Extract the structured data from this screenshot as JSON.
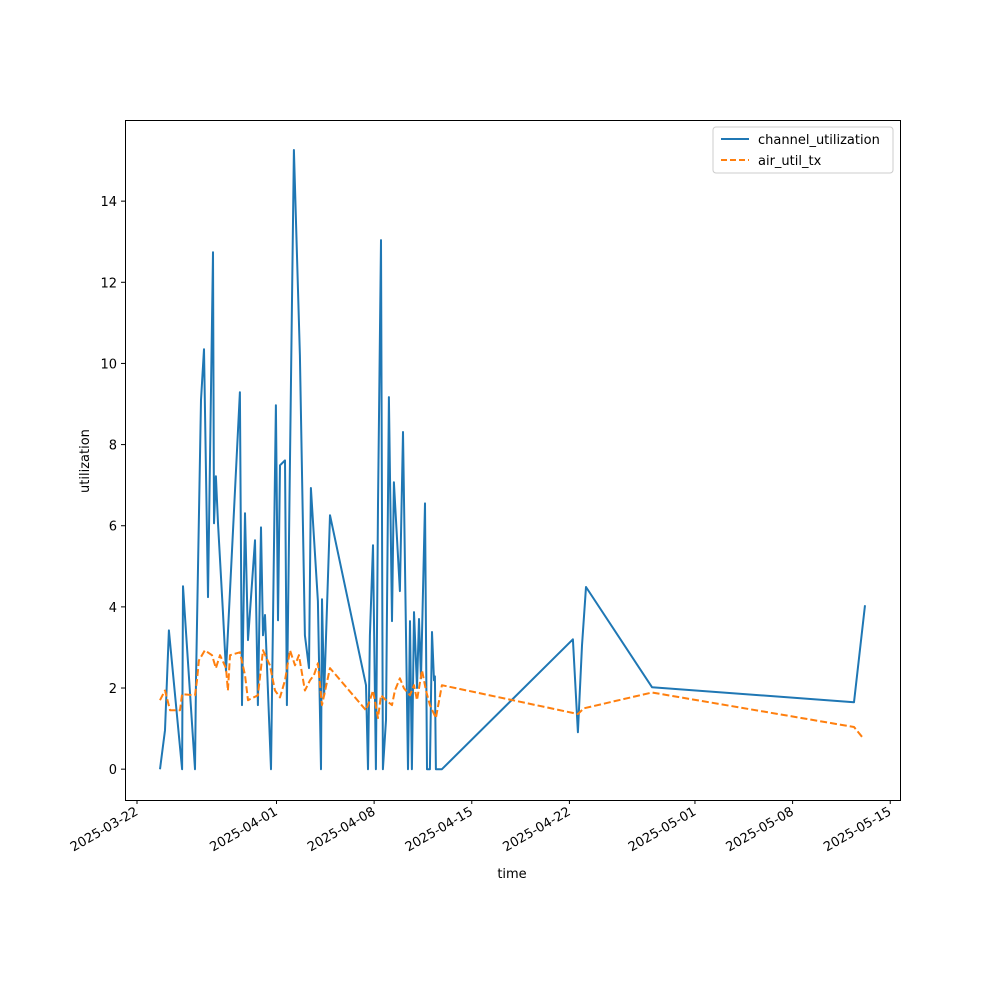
{
  "chart_data": {
    "type": "line",
    "title": "",
    "xlabel": "time",
    "ylabel": "utilization",
    "x_origin_date": "2025-03-22",
    "x_unit": "days since 2025-03-22",
    "xlim": [
      -0.86,
      54.7
    ],
    "ylim": [
      -0.76,
      16.0
    ],
    "xticks": [
      {
        "label": "2025-03-22",
        "day": 0
      },
      {
        "label": "2025-04-01",
        "day": 10
      },
      {
        "label": "2025-04-08",
        "day": 17
      },
      {
        "label": "2025-04-15",
        "day": 24
      },
      {
        "label": "2025-04-22",
        "day": 31
      },
      {
        "label": "2025-05-01",
        "day": 40
      },
      {
        "label": "2025-05-08",
        "day": 47
      },
      {
        "label": "2025-05-15",
        "day": 54
      }
    ],
    "yticks": [
      0,
      2,
      4,
      6,
      8,
      10,
      12,
      14
    ],
    "grid": false,
    "legend": "top-right",
    "series": [
      {
        "name": "channel_utilization",
        "color": "#1f77b4",
        "style": "solid",
        "points": [
          [
            1.65,
            0
          ],
          [
            2.01,
            0.96
          ],
          [
            2.29,
            3.42
          ],
          [
            3.23,
            0
          ],
          [
            3.3,
            4.51
          ],
          [
            4.16,
            0
          ],
          [
            4.23,
            2.19
          ],
          [
            4.59,
            9.1
          ],
          [
            4.8,
            10.35
          ],
          [
            5.09,
            4.24
          ],
          [
            5.45,
            12.74
          ],
          [
            5.52,
            6.06
          ],
          [
            5.66,
            7.22
          ],
          [
            5.81,
            6.06
          ],
          [
            6.16,
            3.89
          ],
          [
            6.38,
            2.42
          ],
          [
            7.38,
            9.29
          ],
          [
            7.53,
            1.58
          ],
          [
            7.74,
            6.31
          ],
          [
            7.96,
            3.18
          ],
          [
            8.46,
            5.64
          ],
          [
            8.67,
            1.58
          ],
          [
            8.89,
            5.96
          ],
          [
            9.03,
            3.3
          ],
          [
            9.18,
            3.8
          ],
          [
            9.61,
            0
          ],
          [
            9.82,
            5.52
          ],
          [
            9.96,
            8.97
          ],
          [
            10.11,
            3.67
          ],
          [
            10.25,
            7.49
          ],
          [
            10.61,
            7.61
          ],
          [
            10.75,
            1.58
          ],
          [
            11.25,
            15.26
          ],
          [
            11.68,
            10.2
          ],
          [
            12.04,
            3.3
          ],
          [
            12.33,
            2.49
          ],
          [
            12.47,
            6.93
          ],
          [
            12.97,
            4.14
          ],
          [
            13.19,
            0
          ],
          [
            13.26,
            4.19
          ],
          [
            13.41,
            1.82
          ],
          [
            13.84,
            6.26
          ],
          [
            16.42,
            2.07
          ],
          [
            16.56,
            0
          ],
          [
            16.7,
            3.3
          ],
          [
            16.92,
            5.52
          ],
          [
            17.13,
            0
          ],
          [
            17.28,
            6.51
          ],
          [
            17.49,
            13.04
          ],
          [
            17.63,
            0
          ],
          [
            17.85,
            1.21
          ],
          [
            18.06,
            9.17
          ],
          [
            18.28,
            3.65
          ],
          [
            18.42,
            7.07
          ],
          [
            18.85,
            4.39
          ],
          [
            19.07,
            8.31
          ],
          [
            19.43,
            0
          ],
          [
            19.57,
            3.65
          ],
          [
            19.71,
            0
          ],
          [
            19.86,
            3.87
          ],
          [
            20.07,
            2.0
          ],
          [
            20.22,
            3.7
          ],
          [
            20.36,
            2.24
          ],
          [
            20.65,
            6.55
          ],
          [
            20.79,
            0
          ],
          [
            21.0,
            0
          ],
          [
            21.15,
            3.38
          ],
          [
            21.29,
            2.19
          ],
          [
            21.36,
            2.29
          ],
          [
            21.43,
            0
          ],
          [
            21.51,
            0
          ],
          [
            21.86,
            0
          ],
          [
            31.25,
            3.2
          ],
          [
            31.61,
            0.91
          ],
          [
            31.9,
            3.05
          ],
          [
            32.19,
            4.49
          ],
          [
            36.92,
            2.02
          ],
          [
            51.4,
            1.65
          ],
          [
            52.19,
            4.04
          ]
        ]
      },
      {
        "name": "air_util_tx",
        "color": "#ff7f0e",
        "style": "dashed",
        "points": [
          [
            1.65,
            1.7
          ],
          [
            2.01,
            1.94
          ],
          [
            2.37,
            1.45
          ],
          [
            3.08,
            1.45
          ],
          [
            3.23,
            1.85
          ],
          [
            4.16,
            1.82
          ],
          [
            4.3,
            2.19
          ],
          [
            4.44,
            2.68
          ],
          [
            4.87,
            2.93
          ],
          [
            5.38,
            2.81
          ],
          [
            5.66,
            2.49
          ],
          [
            5.95,
            2.81
          ],
          [
            6.38,
            2.49
          ],
          [
            6.52,
            1.94
          ],
          [
            6.67,
            2.81
          ],
          [
            7.38,
            2.88
          ],
          [
            7.74,
            2.32
          ],
          [
            7.96,
            1.7
          ],
          [
            8.67,
            1.82
          ],
          [
            9.03,
            2.93
          ],
          [
            9.53,
            2.56
          ],
          [
            9.89,
            1.94
          ],
          [
            10.25,
            1.77
          ],
          [
            10.61,
            2.19
          ],
          [
            10.97,
            2.93
          ],
          [
            11.33,
            2.56
          ],
          [
            11.61,
            2.81
          ],
          [
            12.04,
            1.94
          ],
          [
            12.4,
            2.19
          ],
          [
            12.69,
            2.32
          ],
          [
            12.97,
            2.61
          ],
          [
            13.26,
            1.58
          ],
          [
            13.84,
            2.49
          ],
          [
            16.42,
            1.45
          ],
          [
            16.7,
            1.7
          ],
          [
            16.92,
            1.94
          ],
          [
            17.28,
            1.26
          ],
          [
            17.49,
            1.82
          ],
          [
            17.85,
            1.7
          ],
          [
            18.28,
            1.58
          ],
          [
            18.49,
            1.94
          ],
          [
            18.85,
            2.24
          ],
          [
            19.14,
            1.99
          ],
          [
            19.57,
            1.82
          ],
          [
            19.86,
            2.07
          ],
          [
            20.07,
            1.7
          ],
          [
            20.43,
            2.44
          ],
          [
            20.72,
            1.94
          ],
          [
            21.0,
            1.58
          ],
          [
            21.43,
            1.26
          ],
          [
            21.86,
            2.07
          ],
          [
            31.61,
            1.36
          ],
          [
            32.04,
            1.5
          ],
          [
            36.92,
            1.89
          ],
          [
            51.4,
            1.04
          ],
          [
            52.04,
            0.77
          ]
        ]
      }
    ]
  }
}
